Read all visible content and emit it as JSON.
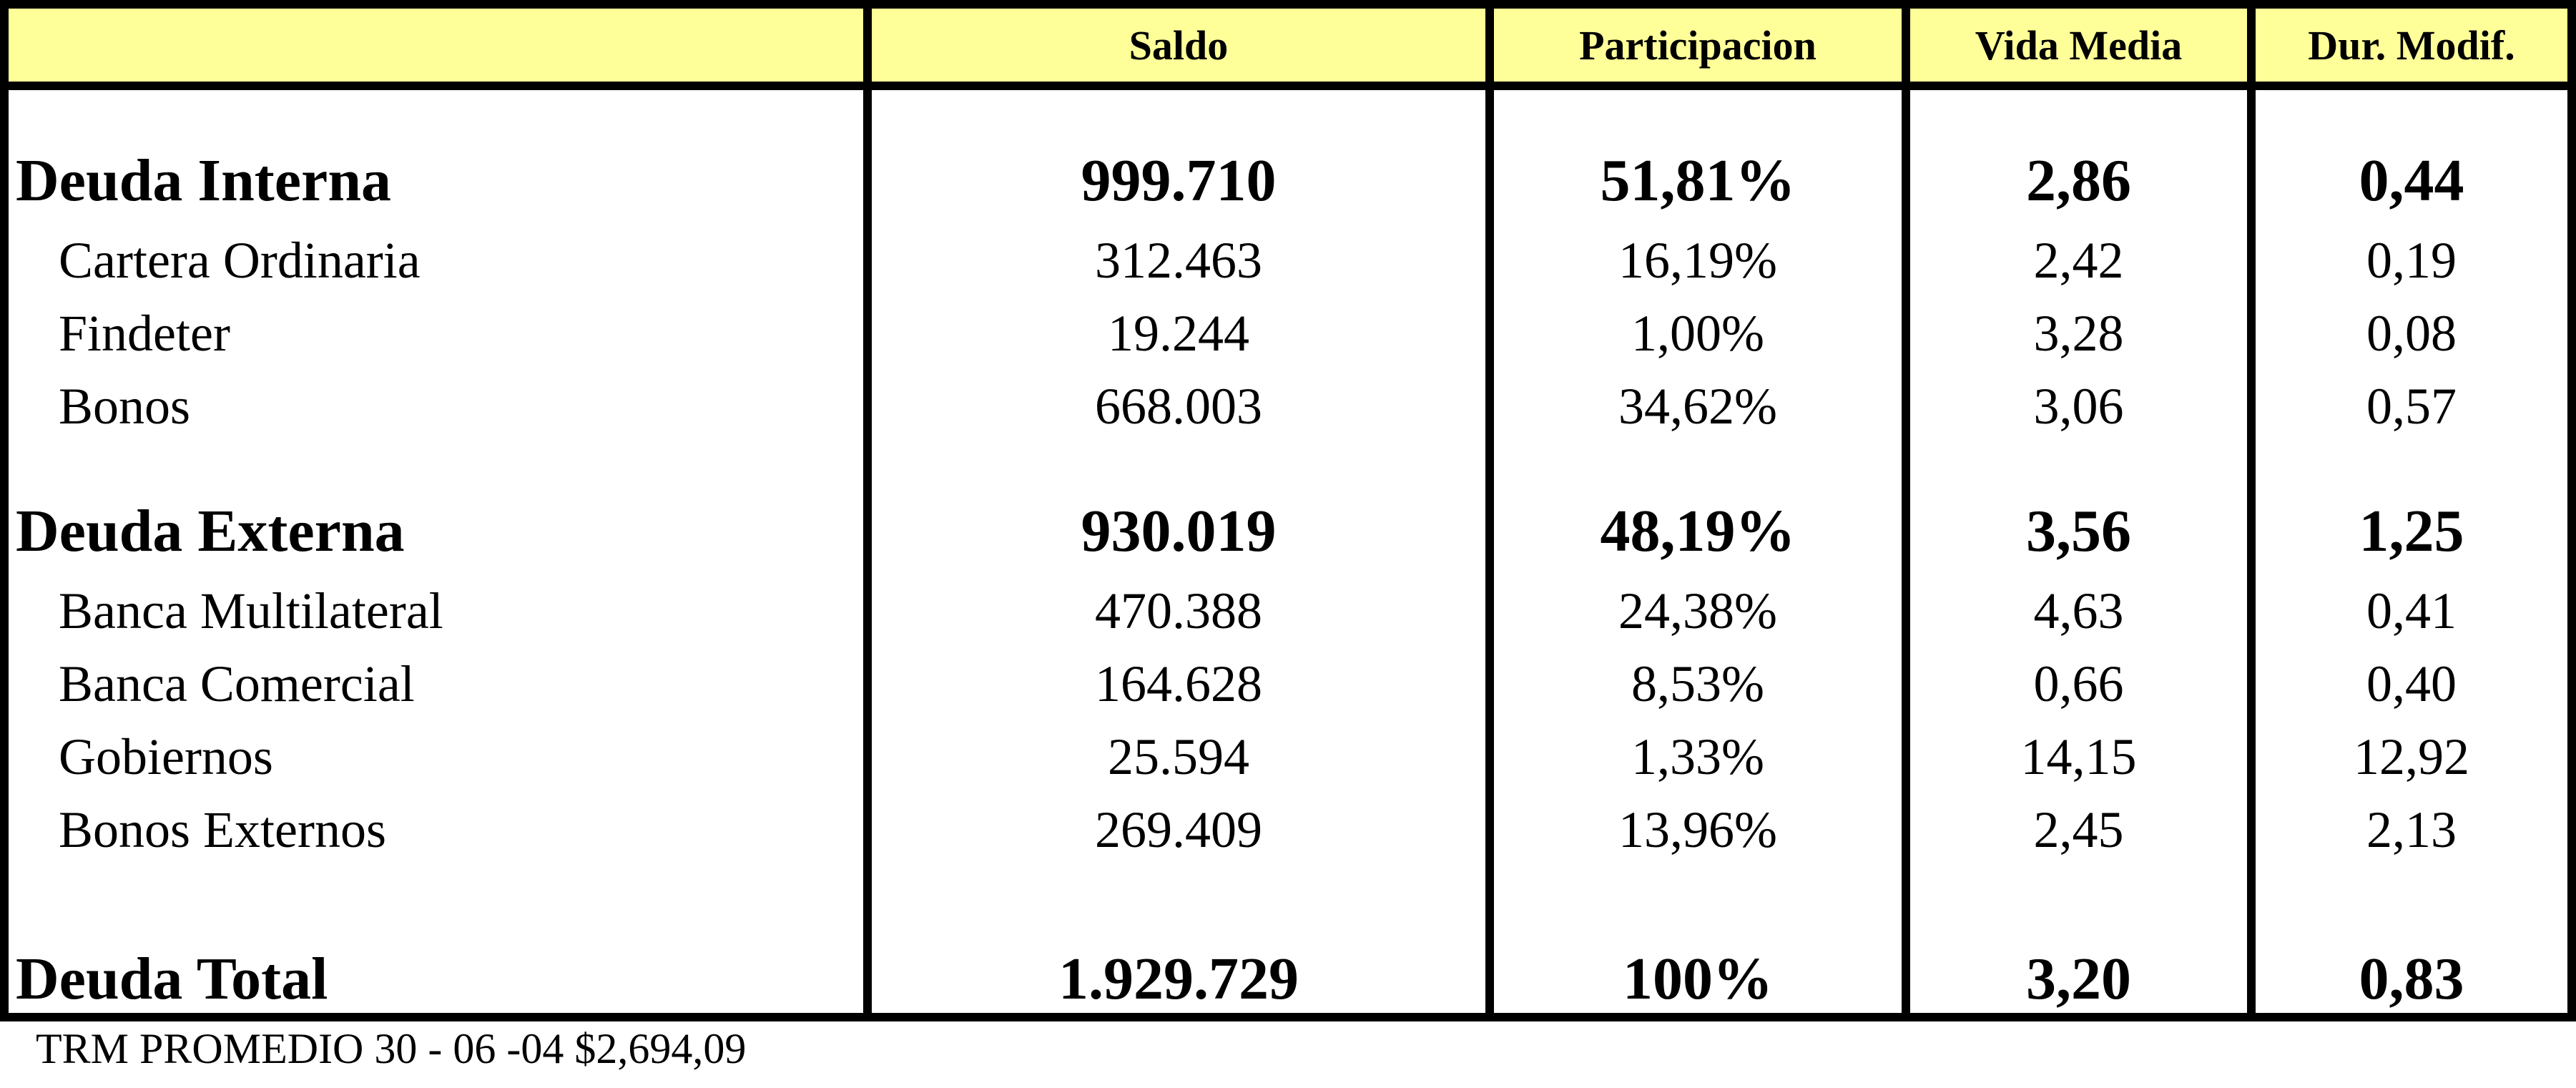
{
  "headers": {
    "label": "",
    "saldo": "Saldo",
    "participacion": "Participacion",
    "vida_media": "Vida Media",
    "dur_modif": "Dur. Modif."
  },
  "rows": [
    {
      "label": "Deuda Interna",
      "saldo": "999.710",
      "participacion": "51,81%",
      "vida_media": "2,86",
      "dur_modif": "0,44",
      "style": "bold"
    },
    {
      "label": "Cartera Ordinaria",
      "saldo": "312.463",
      "participacion": "16,19%",
      "vida_media": "2,42",
      "dur_modif": "0,19",
      "style": "sub"
    },
    {
      "label": "Findeter",
      "saldo": "19.244",
      "participacion": "1,00%",
      "vida_media": "3,28",
      "dur_modif": "0,08",
      "style": "sub"
    },
    {
      "label": "Bonos",
      "saldo": "668.003",
      "participacion": "34,62%",
      "vida_media": "3,06",
      "dur_modif": "0,57",
      "style": "sub"
    },
    {
      "label": "Deuda Externa",
      "saldo": "930.019",
      "participacion": "48,19%",
      "vida_media": "3,56",
      "dur_modif": "1,25",
      "style": "bold"
    },
    {
      "label": "Banca Multilateral",
      "saldo": "470.388",
      "participacion": "24,38%",
      "vida_media": "4,63",
      "dur_modif": "0,41",
      "style": "sub"
    },
    {
      "label": "Banca Comercial",
      "saldo": "164.628",
      "participacion": "8,53%",
      "vida_media": "0,66",
      "dur_modif": "0,40",
      "style": "sub"
    },
    {
      "label": "Gobiernos",
      "saldo": "25.594",
      "participacion": "1,33%",
      "vida_media": "14,15",
      "dur_modif": "12,92",
      "style": "sub"
    },
    {
      "label": "Bonos Externos",
      "saldo": "269.409",
      "participacion": "13,96%",
      "vida_media": "2,45",
      "dur_modif": "2,13",
      "style": "sub"
    },
    {
      "label": "Deuda Total",
      "saldo": "1.929.729",
      "participacion": "100%",
      "vida_media": "3,20",
      "dur_modif": "0,83",
      "style": "bold"
    }
  ],
  "footnote": "TRM PROMEDIO 30 - 06 -04 $2,694,09"
}
